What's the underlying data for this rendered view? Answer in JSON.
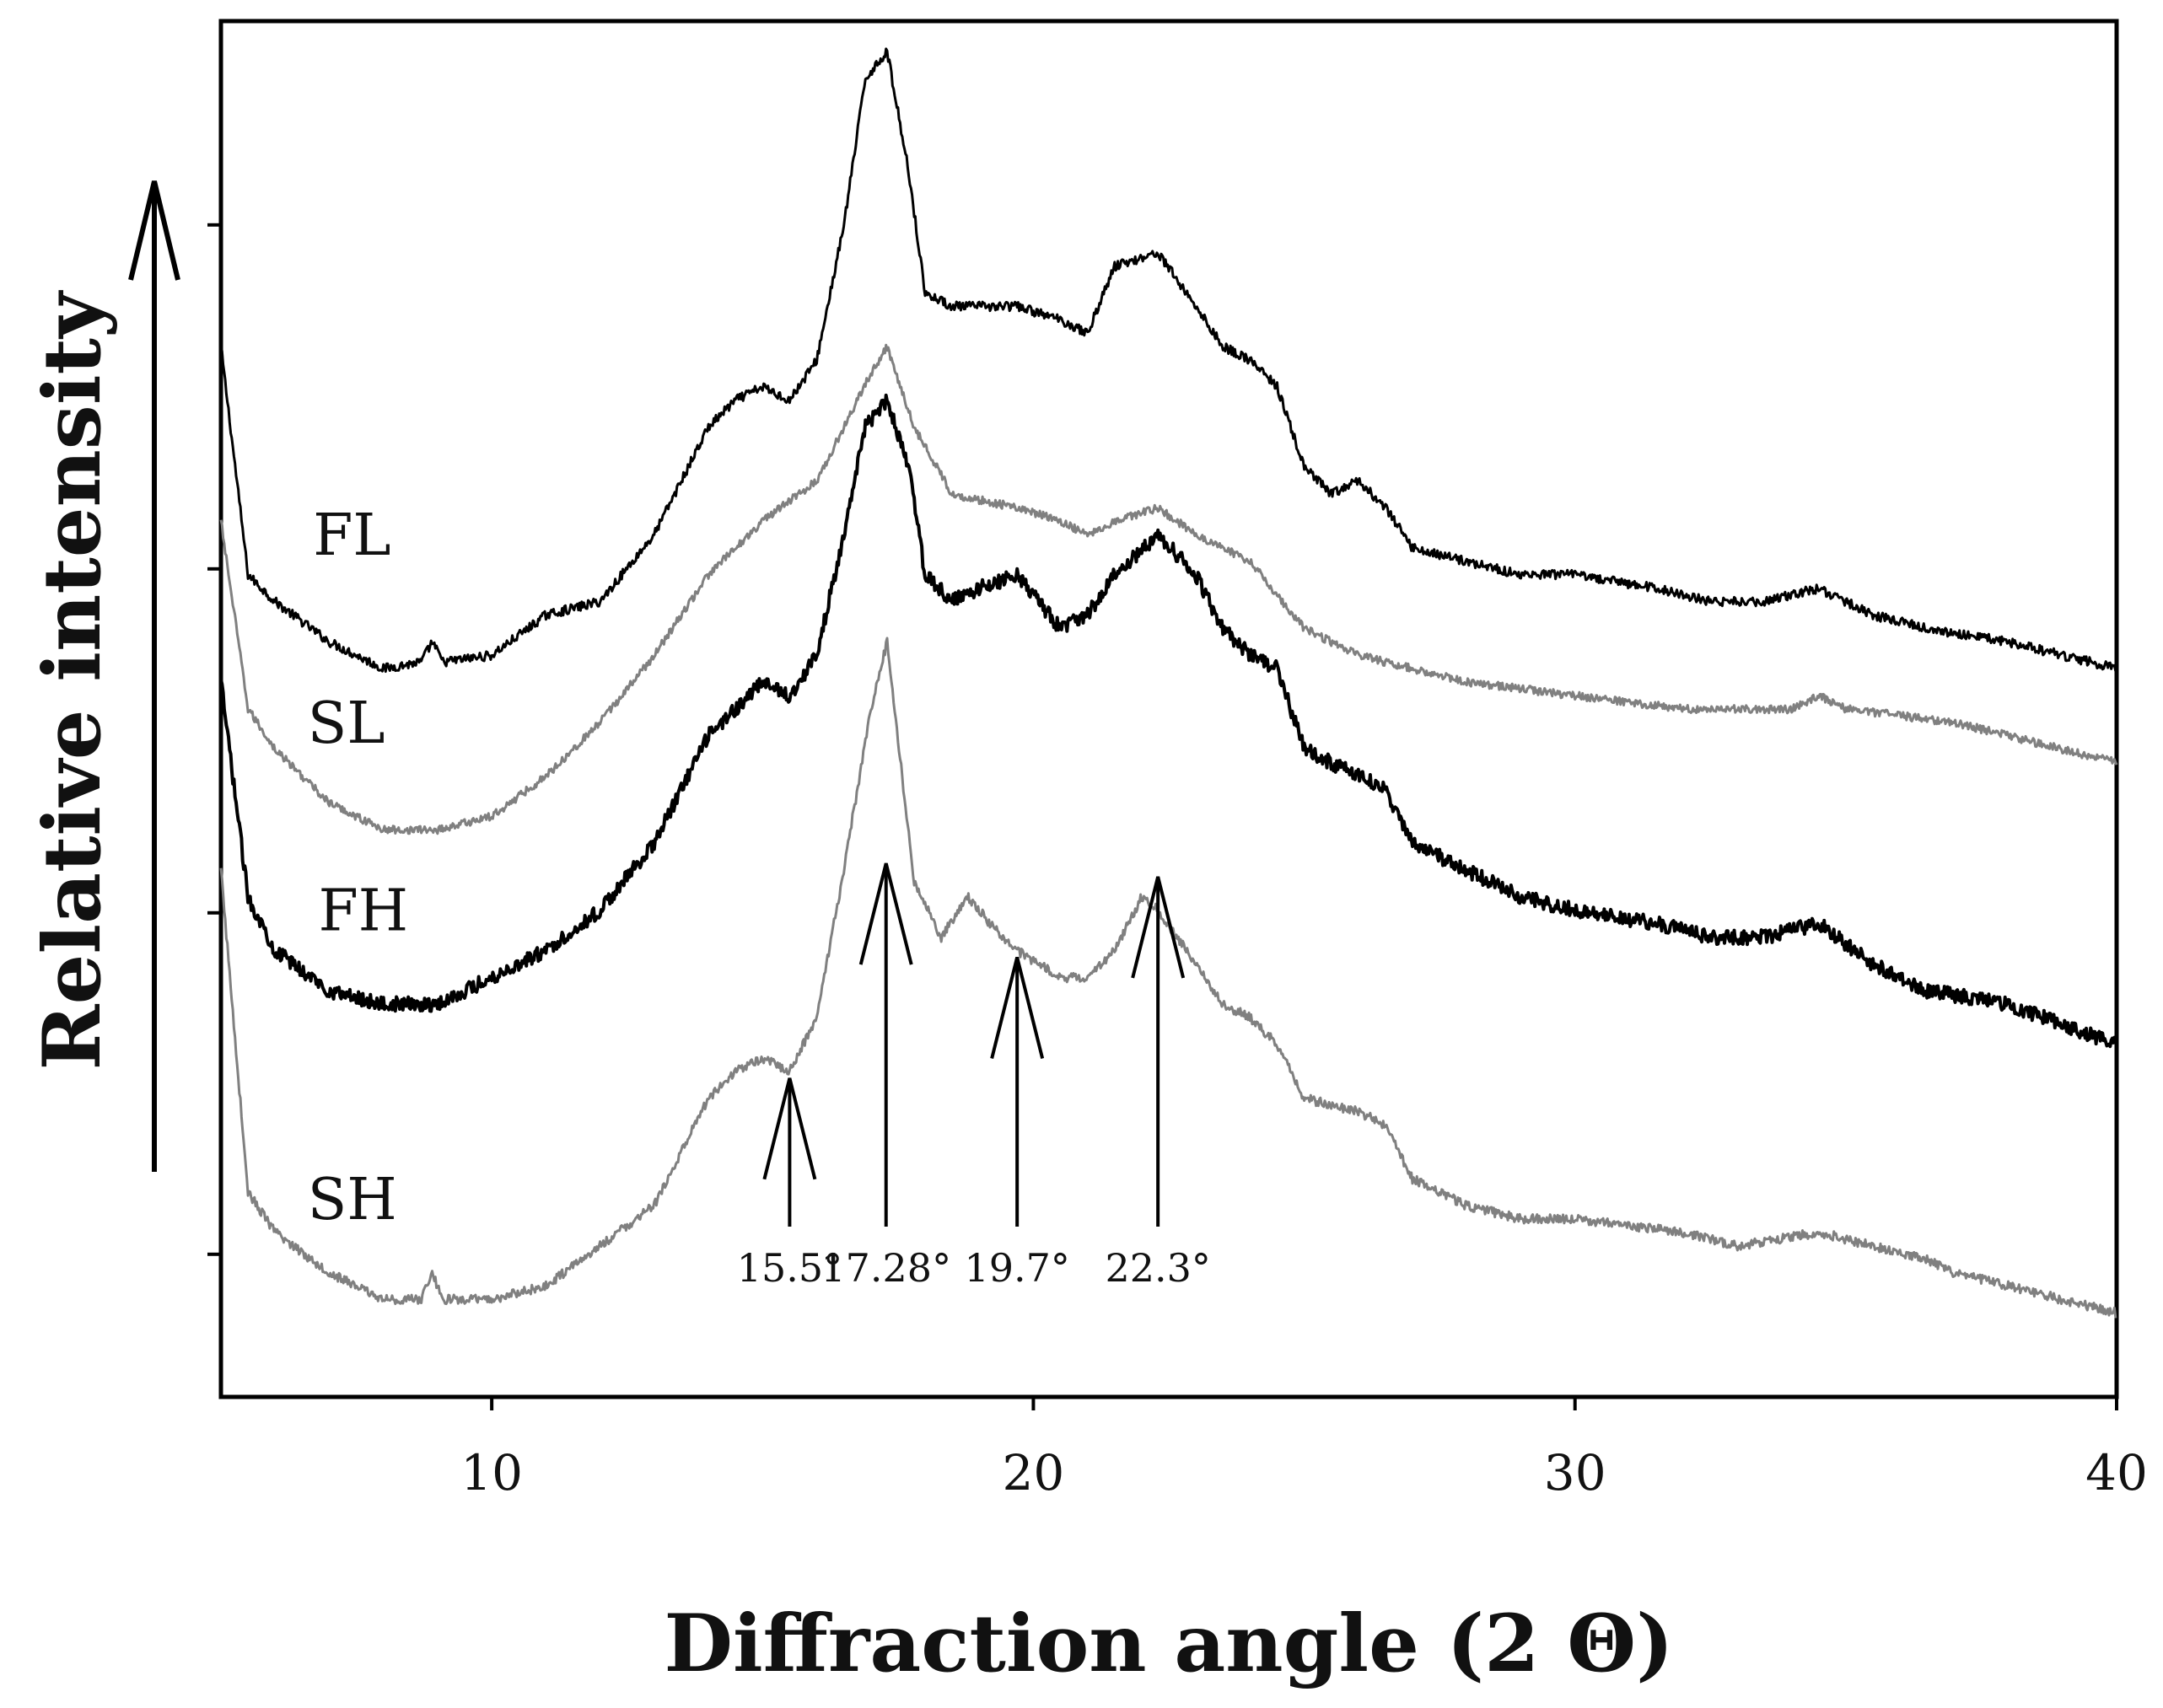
{
  "chart_data": {
    "type": "line",
    "title": "",
    "xlabel": "Diffraction angle (2 Θ)",
    "ylabel": "Relative intensity",
    "xlim": [
      5,
      40
    ],
    "ylim": [
      0,
      100
    ],
    "grid": false,
    "x_ticks": [
      "10",
      "20",
      "30",
      "40"
    ],
    "x_tick_values": [
      10,
      20,
      30,
      40
    ],
    "y_ticks_labeled": false,
    "series": [
      {
        "name": "FL",
        "color": "#000000",
        "x": [
          5,
          5.5,
          6,
          7,
          8,
          8.7,
          8.9,
          9.1,
          10,
          11,
          12,
          13,
          14,
          14.5,
          15,
          15.5,
          16,
          16.5,
          16.9,
          17.3,
          17.7,
          18,
          18.5,
          19,
          19.7,
          20.5,
          21,
          21.5,
          22.3,
          23,
          23.5,
          24,
          24.5,
          25,
          25.5,
          26,
          26.5,
          27,
          28,
          29,
          30,
          31.5,
          32.5,
          33.5,
          34.5,
          35.5,
          36.5,
          38,
          40
        ],
        "values": [
          77,
          60,
          58,
          55,
          53,
          53.5,
          55,
          53.5,
          54,
          57,
          58,
          63,
          71,
          73,
          74,
          73,
          76,
          86,
          97,
          99,
          90,
          81,
          80,
          80,
          80,
          79,
          78,
          83,
          84,
          80,
          77,
          76,
          74,
          68,
          66,
          67,
          65,
          62,
          61,
          60,
          60,
          59,
          58,
          58,
          59,
          57,
          56,
          55,
          53
        ]
      },
      {
        "name": "SL",
        "color": "#808080",
        "x": [
          5,
          5.5,
          6,
          7,
          8,
          9,
          10,
          11,
          12,
          13,
          14,
          15,
          16,
          16.5,
          17,
          17.3,
          17.8,
          18.5,
          19.7,
          20.5,
          21,
          21.5,
          22.3,
          23,
          24,
          25,
          26,
          27,
          28,
          30,
          32,
          34,
          34.5,
          35,
          37,
          40
        ],
        "values": [
          64,
          50,
          47,
          43,
          41,
          41,
          42,
          45,
          49,
          54,
          60,
          64,
          67,
          71,
          75,
          77,
          71,
          66,
          65,
          64,
          63,
          64,
          65,
          63,
          61,
          56,
          54,
          53,
          52,
          51,
          50,
          50,
          51,
          50,
          49,
          46
        ]
      },
      {
        "name": "FH",
        "color": "#000000",
        "x": [
          5,
          5.5,
          6,
          7,
          8,
          9,
          10,
          11,
          12,
          13,
          14,
          14.5,
          15,
          15.5,
          16,
          16.5,
          16.9,
          17.3,
          17.7,
          18,
          18.5,
          19,
          19.7,
          20.5,
          21,
          21.5,
          22.3,
          23,
          23.5,
          24,
          24.5,
          25,
          26,
          26.5,
          27,
          28,
          29,
          30,
          31.5,
          32.5,
          33.5,
          34.5,
          35.5,
          36.5,
          38,
          40
        ],
        "values": [
          52,
          36,
          32,
          29,
          28,
          28,
          30,
          32,
          35,
          40,
          48,
          50,
          52,
          51,
          54,
          63,
          71,
          73,
          68,
          60,
          58,
          59,
          60,
          56,
          57,
          60,
          63,
          60,
          56,
          54,
          53,
          47,
          45,
          44,
          40,
          38,
          36,
          35,
          34,
          33,
          33,
          34,
          31,
          29,
          28,
          25
        ]
      },
      {
        "name": "SH",
        "color": "#808080",
        "x": [
          5,
          5.5,
          6,
          7,
          8,
          8.7,
          8.9,
          9.1,
          10,
          11,
          12,
          13,
          14,
          14.5,
          15,
          15.5,
          16,
          16.5,
          17,
          17.3,
          17.8,
          18.3,
          18.8,
          19.2,
          19.7,
          20.5,
          21,
          21.5,
          22,
          22.3,
          23,
          23.5,
          24,
          24.5,
          25,
          26,
          26.5,
          27,
          28,
          29,
          30,
          32,
          33,
          34.5,
          35.5,
          36.5,
          37,
          38,
          40
        ],
        "values": [
          38,
          14,
          11,
          8,
          6,
          6,
          8,
          6,
          6,
          7,
          10,
          13,
          21,
          23,
          24,
          23,
          27,
          38,
          50,
          55,
          37,
          33,
          36,
          34,
          32,
          30,
          30,
          32,
          36,
          35,
          31,
          28,
          27,
          25,
          21,
          20,
          19,
          15,
          13,
          12,
          12,
          11,
          10,
          11,
          10,
          9,
          8,
          7,
          5
        ]
      }
    ],
    "annotations": [
      {
        "label": "15.5°",
        "x": 15.5
      },
      {
        "label": "17.28°",
        "x": 17.28
      },
      {
        "label": "19.7°",
        "x": 19.7
      },
      {
        "label": "22.3°",
        "x": 22.3
      }
    ],
    "intensity_arrow": true
  }
}
